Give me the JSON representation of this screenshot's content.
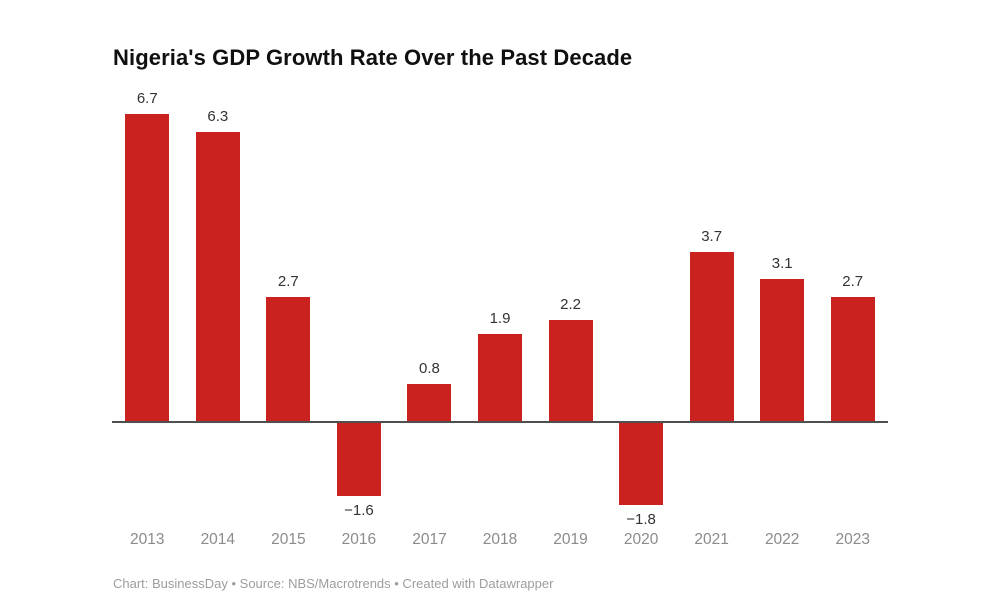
{
  "title": "Nigeria's GDP Growth Rate Over the Past Decade",
  "footer": "Chart: BusinessDay • Source: NBS/Macrotrends • Created with Datawrapper",
  "colors": {
    "bar": "#c9221f",
    "axis": "#4f4f4f",
    "title": "#101010",
    "value_label": "#333333",
    "year_label": "#8b8b8b",
    "footer": "#9d9d9d",
    "background": "#ffffff"
  },
  "chart_data": {
    "type": "bar",
    "title": "Nigeria's GDP Growth Rate Over the Past Decade",
    "categories": [
      "2013",
      "2014",
      "2015",
      "2016",
      "2017",
      "2018",
      "2019",
      "2020",
      "2021",
      "2022",
      "2023"
    ],
    "values": [
      6.7,
      6.3,
      2.7,
      -1.6,
      0.8,
      1.9,
      2.2,
      -1.8,
      3.7,
      3.1,
      2.7
    ],
    "value_labels": [
      "6.7",
      "6.3",
      "2.7",
      "−1.6",
      "0.8",
      "1.9",
      "2.2",
      "−1.8",
      "3.7",
      "3.1",
      "2.7"
    ],
    "xlabel": "",
    "ylabel": "",
    "ylim": [
      -2.5,
      7
    ],
    "baseline": 0,
    "grid": false,
    "legend": false,
    "bar_color": "#c9221f"
  }
}
